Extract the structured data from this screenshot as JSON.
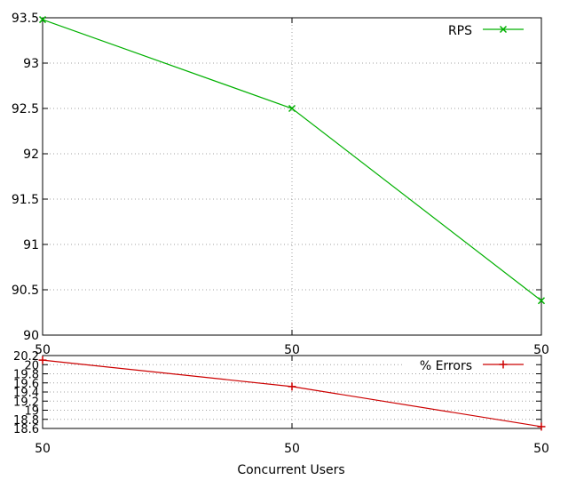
{
  "chart_data": [
    {
      "type": "line",
      "title": "",
      "x": [
        "50",
        "50",
        "50"
      ],
      "ylim": [
        90,
        93.5
      ],
      "yticks": [
        "90",
        "90.5",
        "91",
        "91.5",
        "92",
        "92.5",
        "93",
        "93.5"
      ],
      "ytick_values": [
        90,
        90.5,
        91,
        91.5,
        92,
        92.5,
        93,
        93.5
      ],
      "grid": true,
      "legend_position": "top-right",
      "series": [
        {
          "name": "RPS",
          "values": [
            93.48,
            92.5,
            90.38
          ],
          "color": "#00b000",
          "marker": "x"
        }
      ]
    },
    {
      "type": "line",
      "title": "",
      "x": [
        "50",
        "50",
        "50"
      ],
      "xlabel": "Concurrent Users",
      "ylim": [
        18.6,
        20.2
      ],
      "yticks": [
        "18.6",
        "18.8",
        "19",
        "19.2",
        "19.4",
        "19.6",
        "19.8",
        "20",
        "20.2"
      ],
      "ytick_values": [
        18.6,
        18.8,
        19,
        19.2,
        19.4,
        19.6,
        19.8,
        20,
        20.2
      ],
      "grid": true,
      "legend_position": "top-right",
      "series": [
        {
          "name": "% Errors",
          "values": [
            20.1,
            19.52,
            18.64
          ],
          "color": "#cc0000",
          "marker": "+"
        }
      ]
    }
  ]
}
